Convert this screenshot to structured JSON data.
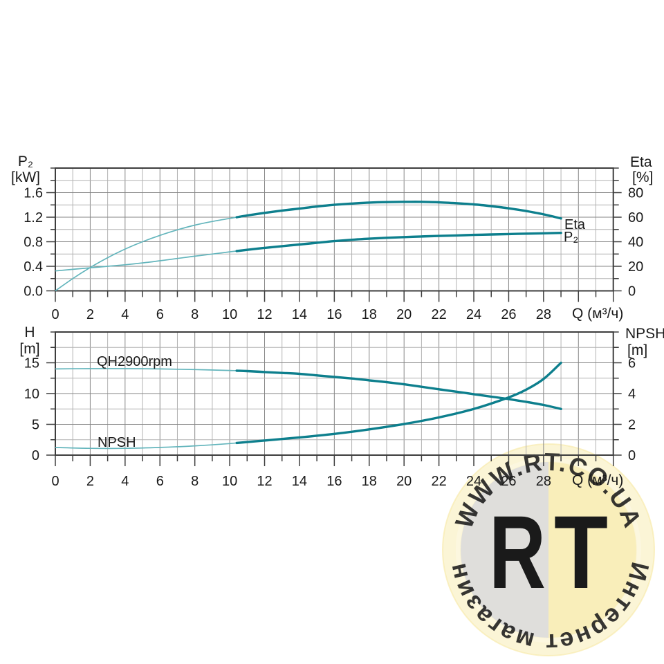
{
  "watermark": {
    "top_arc_text": "WWW.RT.CO.UA",
    "bottom_arc_text": "Интернет магазин",
    "center_left_letter": "R",
    "center_right_letter": "T",
    "colors": {
      "halo": "#F8EBAE",
      "ring": "#FCF7E0",
      "disc_left": "#DBDBDB",
      "disc_right": "#F9EDB8",
      "letter_left": "#F6E6A4",
      "letter_right": "#D3D3D3",
      "arc_text": "#F2D478"
    }
  },
  "chart_data": [
    {
      "type": "line",
      "name": "power-and-efficiency",
      "grid": true,
      "x_axis": {
        "label": "Q (м³/ч)",
        "lim": [
          0,
          32
        ],
        "minor_step": 1,
        "major_step": 2,
        "labeled_ticks": [
          {
            "v": 0,
            "t": "0"
          },
          {
            "v": 2,
            "t": "2"
          },
          {
            "v": 4,
            "t": "4"
          },
          {
            "v": 6,
            "t": "6"
          },
          {
            "v": 8,
            "t": "8"
          },
          {
            "v": 10,
            "t": "10"
          },
          {
            "v": 12,
            "t": "12"
          },
          {
            "v": 14,
            "t": "14"
          },
          {
            "v": 16,
            "t": "16"
          },
          {
            "v": 18,
            "t": "18"
          },
          {
            "v": 20,
            "t": "20"
          },
          {
            "v": 22,
            "t": "22"
          },
          {
            "v": 24,
            "t": "24"
          },
          {
            "v": 26,
            "t": "26"
          },
          {
            "v": 28,
            "t": "28"
          }
        ]
      },
      "left_axis": {
        "title": "P₂",
        "unit": "[kW]",
        "lim": [
          0,
          2.0
        ],
        "minor_step": 0.2,
        "labeled_ticks": [
          {
            "v": 0,
            "t": "0.0"
          },
          {
            "v": 0.4,
            "t": "0.4"
          },
          {
            "v": 0.8,
            "t": "0.8"
          },
          {
            "v": 1.2,
            "t": "1.2"
          },
          {
            "v": 1.6,
            "t": "1.6"
          }
        ]
      },
      "right_axis": {
        "title": "Eta",
        "unit": "[%]",
        "lim": [
          0,
          100
        ],
        "minor_step": 10,
        "labeled_ticks": [
          {
            "v": 0,
            "t": "0"
          },
          {
            "v": 20,
            "t": "20"
          },
          {
            "v": 40,
            "t": "40"
          },
          {
            "v": 60,
            "t": "60"
          },
          {
            "v": 80,
            "t": "80"
          }
        ]
      },
      "colors": {
        "curve_thick": "#0D7F8D",
        "curve_thin": "#63B5BC"
      },
      "series": [
        {
          "name": "Eta",
          "curve_label": "Eta",
          "axis": "right",
          "thick_from": 10.4,
          "points": [
            [
              0,
              0
            ],
            [
              1,
              10
            ],
            [
              2,
              19
            ],
            [
              3,
              27
            ],
            [
              4,
              34
            ],
            [
              5,
              40
            ],
            [
              6,
              45.2
            ],
            [
              7,
              49.7
            ],
            [
              8,
              53.5
            ],
            [
              9,
              56.5
            ],
            [
              10,
              59
            ],
            [
              11,
              61.4
            ],
            [
              12,
              63.5
            ],
            [
              13,
              65.4
            ],
            [
              14,
              67
            ],
            [
              15,
              68.7
            ],
            [
              16,
              70.1
            ],
            [
              17,
              71.1
            ],
            [
              18,
              71.9
            ],
            [
              19,
              72.3
            ],
            [
              20,
              72.5
            ],
            [
              21,
              72.5
            ],
            [
              22,
              72.1
            ],
            [
              23,
              71.4
            ],
            [
              24,
              70.4
            ],
            [
              25,
              69
            ],
            [
              26,
              67.2
            ],
            [
              27,
              65
            ],
            [
              28,
              62.3
            ],
            [
              29,
              59
            ]
          ]
        },
        {
          "name": "P2",
          "curve_label": "P₂",
          "axis": "left",
          "thick_from": 10.4,
          "points": [
            [
              0,
              0.325
            ],
            [
              1,
              0.35
            ],
            [
              2,
              0.375
            ],
            [
              3,
              0.4
            ],
            [
              4,
              0.425
            ],
            [
              5,
              0.455
            ],
            [
              6,
              0.49
            ],
            [
              7,
              0.527
            ],
            [
              8,
              0.565
            ],
            [
              9,
              0.6
            ],
            [
              10,
              0.635
            ],
            [
              11,
              0.668
            ],
            [
              12,
              0.7
            ],
            [
              13,
              0.728
            ],
            [
              14,
              0.755
            ],
            [
              15,
              0.783
            ],
            [
              16,
              0.81
            ],
            [
              17,
              0.832
            ],
            [
              18,
              0.85
            ],
            [
              19,
              0.864
            ],
            [
              20,
              0.876
            ],
            [
              21,
              0.886
            ],
            [
              22,
              0.895
            ],
            [
              23,
              0.903
            ],
            [
              24,
              0.911
            ],
            [
              25,
              0.918
            ],
            [
              26,
              0.925
            ],
            [
              27,
              0.932
            ],
            [
              28,
              0.938
            ],
            [
              29,
              0.944
            ]
          ]
        }
      ]
    },
    {
      "type": "line",
      "name": "head-and-npsh",
      "grid": true,
      "x_axis": {
        "label": "Q (м³/ч)",
        "lim": [
          0,
          32
        ],
        "minor_step": 1,
        "major_step": 2,
        "labeled_ticks": [
          {
            "v": 0,
            "t": "0"
          },
          {
            "v": 2,
            "t": "2"
          },
          {
            "v": 4,
            "t": "4"
          },
          {
            "v": 6,
            "t": "6"
          },
          {
            "v": 8,
            "t": "8"
          },
          {
            "v": 10,
            "t": "10"
          },
          {
            "v": 12,
            "t": "12"
          },
          {
            "v": 14,
            "t": "14"
          },
          {
            "v": 16,
            "t": "16"
          },
          {
            "v": 18,
            "t": "18"
          },
          {
            "v": 20,
            "t": "20"
          },
          {
            "v": 22,
            "t": "22"
          },
          {
            "v": 24,
            "t": "24"
          },
          {
            "v": 26,
            "t": "26"
          },
          {
            "v": 28,
            "t": "28"
          }
        ]
      },
      "left_axis": {
        "title": "H",
        "unit": "[m]",
        "lim": [
          0,
          20
        ],
        "minor_step": 2.5,
        "labeled_ticks": [
          {
            "v": 0,
            "t": "0"
          },
          {
            "v": 5,
            "t": "5"
          },
          {
            "v": 10,
            "t": "10"
          },
          {
            "v": 15,
            "t": "15"
          }
        ]
      },
      "right_axis": {
        "title": "NPSH",
        "unit": "[m]",
        "lim": [
          0,
          8
        ],
        "minor_step": 1,
        "labeled_ticks": [
          {
            "v": 0,
            "t": "0"
          },
          {
            "v": 2,
            "t": "2"
          },
          {
            "v": 4,
            "t": "4"
          },
          {
            "v": 6,
            "t": "6"
          }
        ]
      },
      "colors": {
        "curve_thick": "#0D7F8D",
        "curve_thin": "#63B5BC"
      },
      "series": [
        {
          "name": "QH2900rpm",
          "curve_label": "QH2900rpm",
          "axis": "left",
          "thick_from": 10.4,
          "points": [
            [
              0,
              14
            ],
            [
              2,
              14.05
            ],
            [
              4,
              14.05
            ],
            [
              6,
              14
            ],
            [
              8,
              13.9
            ],
            [
              10,
              13.75
            ],
            [
              11,
              13.65
            ],
            [
              12,
              13.5
            ],
            [
              13,
              13.35
            ],
            [
              14,
              13.2
            ],
            [
              15,
              12.95
            ],
            [
              16,
              12.7
            ],
            [
              17,
              12.45
            ],
            [
              18,
              12.15
            ],
            [
              19,
              11.85
            ],
            [
              20,
              11.5
            ],
            [
              21,
              11.1
            ],
            [
              22,
              10.7
            ],
            [
              23,
              10.3
            ],
            [
              24,
              9.9
            ],
            [
              25,
              9.5
            ],
            [
              26,
              9.1
            ],
            [
              27,
              8.65
            ],
            [
              28,
              8.15
            ],
            [
              29,
              7.5
            ]
          ]
        },
        {
          "name": "NPSH",
          "curve_label": "NPSH",
          "axis": "right",
          "thick_from": 10.4,
          "points": [
            [
              0,
              0.5
            ],
            [
              2,
              0.44
            ],
            [
              4,
              0.44
            ],
            [
              6,
              0.5
            ],
            [
              8,
              0.6
            ],
            [
              10,
              0.75
            ],
            [
              12,
              0.95
            ],
            [
              14,
              1.15
            ],
            [
              16,
              1.38
            ],
            [
              18,
              1.67
            ],
            [
              20,
              2.02
            ],
            [
              22,
              2.45
            ],
            [
              24,
              3.0
            ],
            [
              26,
              3.75
            ],
            [
              27,
              4.25
            ],
            [
              28,
              4.95
            ],
            [
              29,
              6.0
            ]
          ]
        }
      ]
    }
  ]
}
